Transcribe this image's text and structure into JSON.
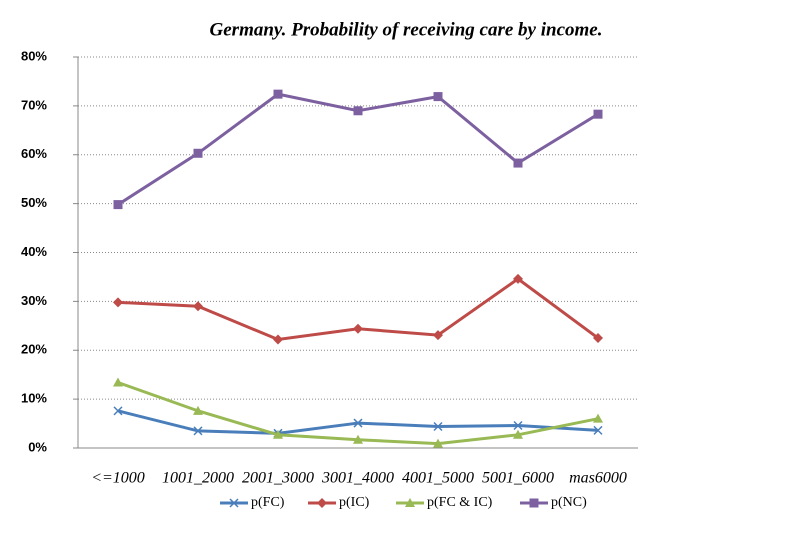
{
  "chart_data": {
    "type": "line",
    "title": "Germany. Probability of receiving care by income.",
    "categories": [
      "<=1000",
      "1001_2000",
      "2001_3000",
      "3001_4000",
      "4001_5000",
      "5001_6000",
      "mas6000"
    ],
    "series": [
      {
        "name": "p(FC)",
        "color": "#4a7ebb",
        "marker": "x",
        "values": [
          7.6,
          3.5,
          3.0,
          5.1,
          4.4,
          4.6,
          3.6
        ]
      },
      {
        "name": "p(IC)",
        "color": "#be4b48",
        "marker": "diamond",
        "values": [
          29.8,
          29.0,
          22.2,
          24.4,
          23.1,
          34.6,
          22.5
        ]
      },
      {
        "name": "p(FC & IC)",
        "color": "#98b954",
        "marker": "triangle",
        "values": [
          13.4,
          7.6,
          2.7,
          1.7,
          0.9,
          2.7,
          6.0
        ]
      },
      {
        "name": "p(NC)",
        "color": "#7d60a0",
        "marker": "square",
        "values": [
          49.8,
          60.3,
          72.4,
          69.0,
          71.9,
          58.3,
          68.3
        ]
      }
    ],
    "ylim": [
      0,
      80
    ],
    "yticks": [
      {
        "value": 0,
        "label": "0%"
      },
      {
        "value": 10,
        "label": "10%"
      },
      {
        "value": 20,
        "label": "20%"
      },
      {
        "value": 30,
        "label": "30%"
      },
      {
        "value": 40,
        "label": "40%"
      },
      {
        "value": 50,
        "label": "50%"
      },
      {
        "value": 60,
        "label": "60%"
      },
      {
        "value": 70,
        "label": "70%"
      },
      {
        "value": 80,
        "label": "80%"
      }
    ],
    "grid": true,
    "legend": "bottom"
  }
}
